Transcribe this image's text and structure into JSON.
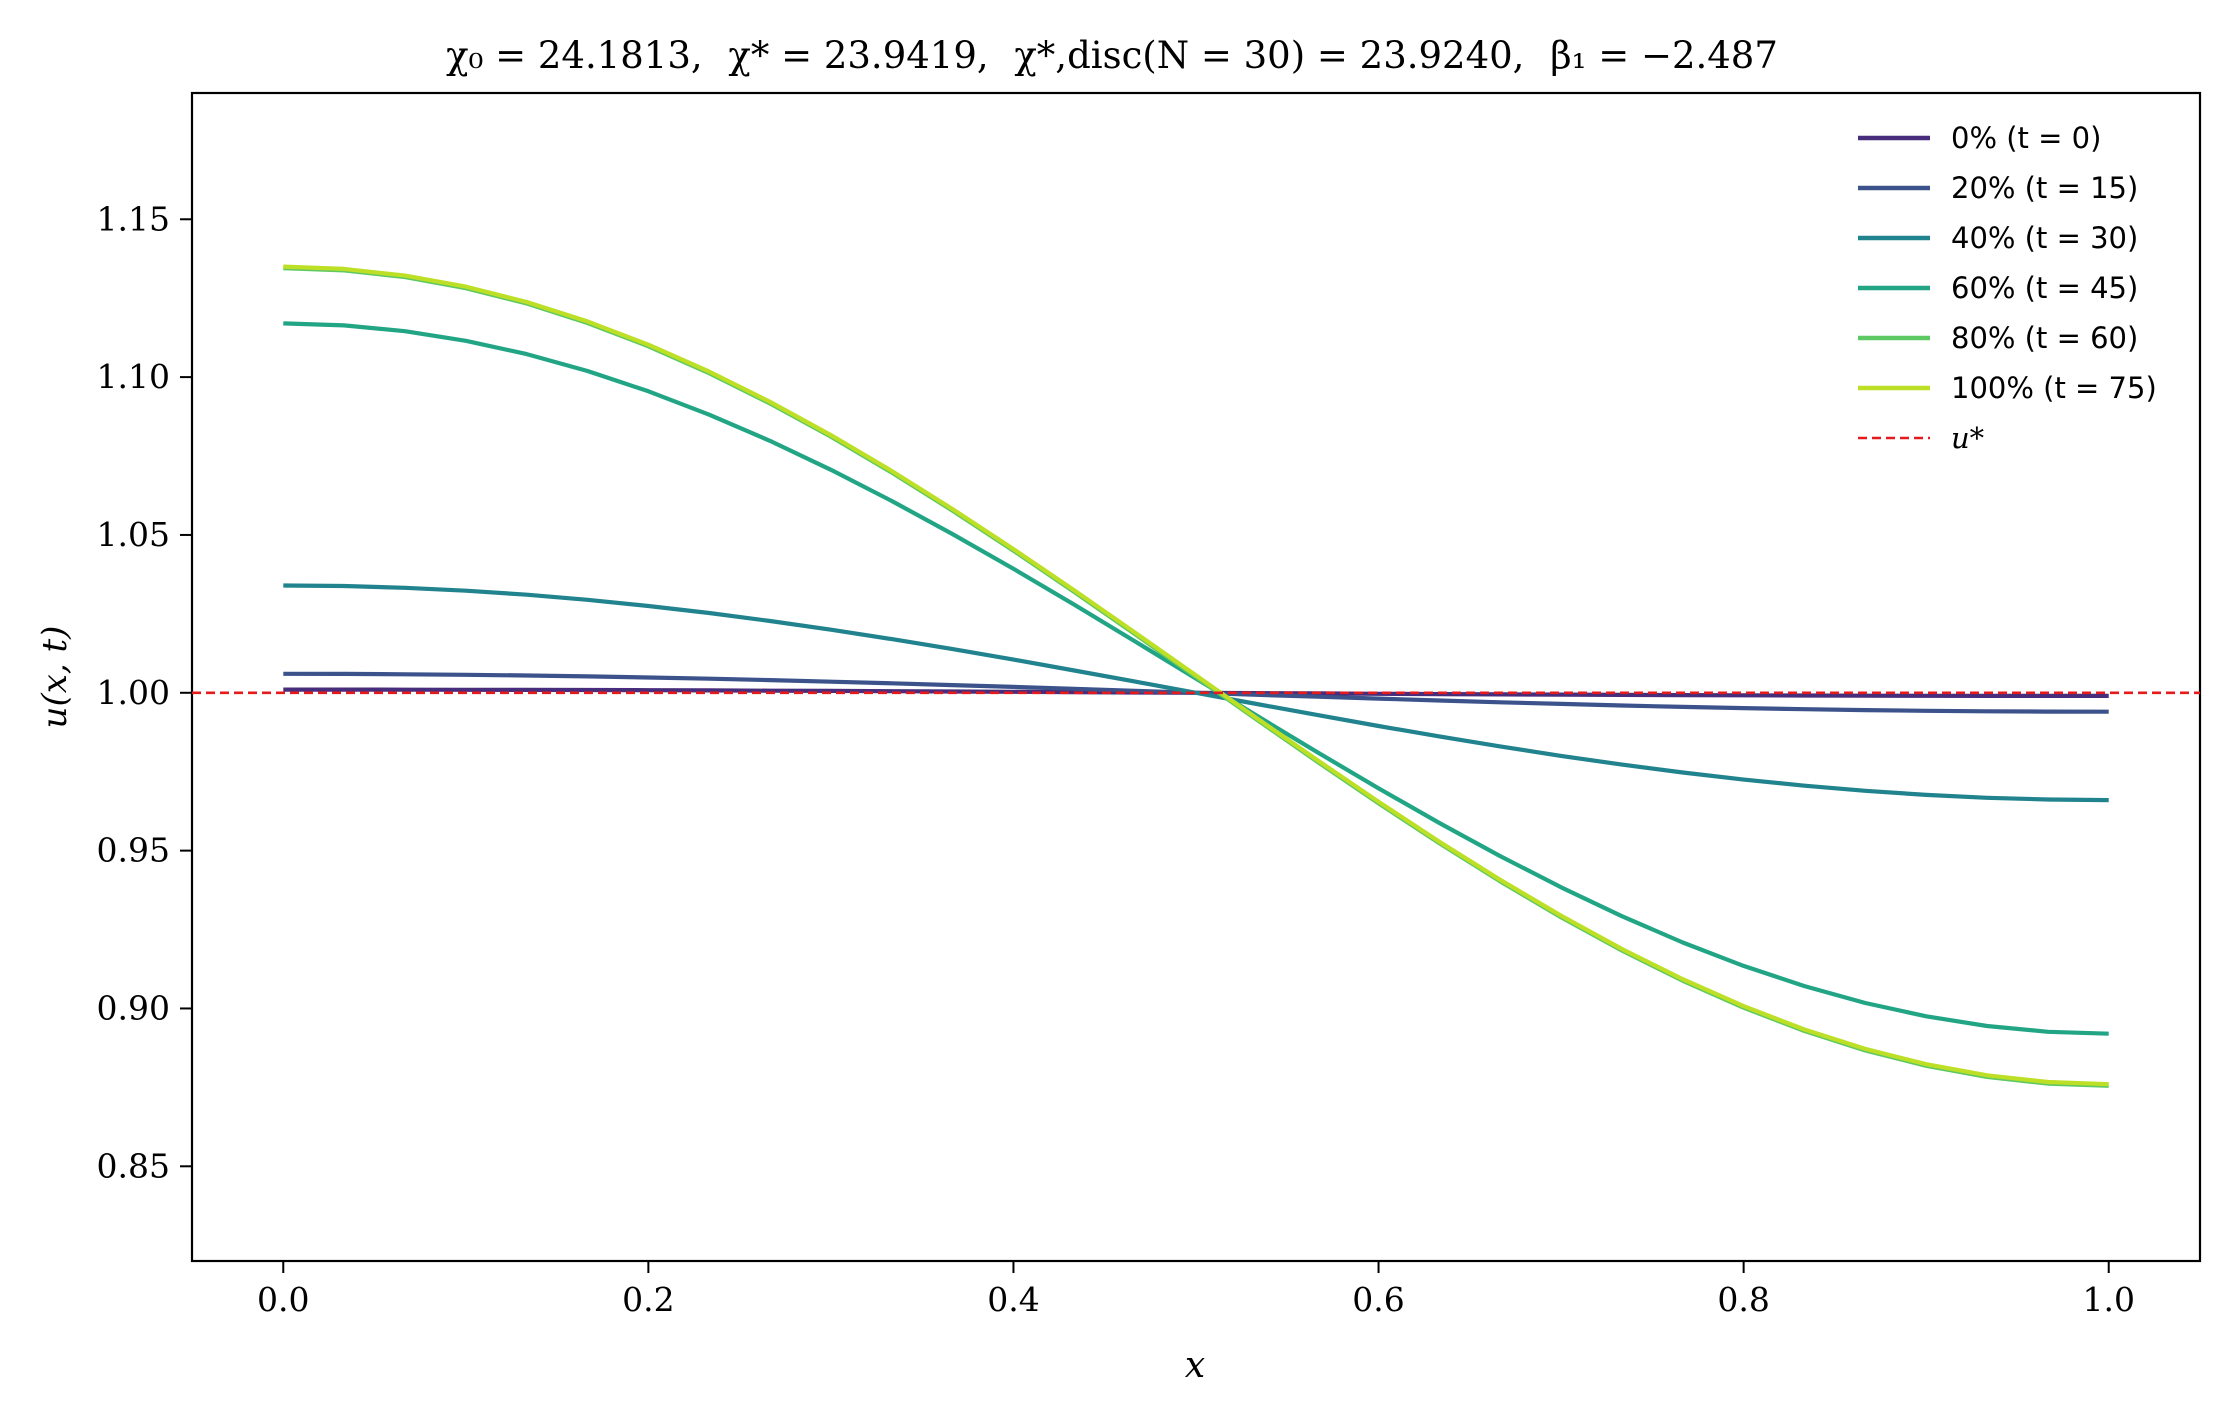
{
  "chart_data": {
    "type": "line",
    "title_parts": [
      "χ₀ = 24.1813,",
      "χ* = 23.9419,",
      "χ*,disc(N = 30) = 23.9240,",
      "β₁ = −2.487"
    ],
    "xlabel": "x",
    "ylabel": "u(x, t)",
    "xlim": [
      -0.05,
      1.05
    ],
    "ylim": [
      0.82,
      1.19
    ],
    "xticks": [
      0.0,
      0.2,
      0.4,
      0.6,
      0.8,
      1.0
    ],
    "xtick_labels": [
      "0.0",
      "0.2",
      "0.4",
      "0.6",
      "0.8",
      "1.0"
    ],
    "yticks": [
      0.85,
      0.9,
      0.95,
      1.0,
      1.05,
      1.1,
      1.15
    ],
    "ytick_labels": [
      "0.85",
      "0.90",
      "0.95",
      "1.00",
      "1.05",
      "1.10",
      "1.15"
    ],
    "grid": false,
    "legend_position": "top-right",
    "reference_line": {
      "name": "u*",
      "y": 1.0,
      "color": "#e41a1c",
      "style": "dashed"
    },
    "series_shape": "cosine",
    "series": [
      {
        "name": "0% (t = 0)",
        "color": "#472d7b",
        "x_range": [
          0,
          1
        ],
        "center": 1.0,
        "amplitude": 0.001
      },
      {
        "name": "20% (t = 15)",
        "color": "#3b528b",
        "x_range": [
          0,
          1
        ],
        "center": 1.0,
        "amplitude": 0.006
      },
      {
        "name": "40% (t = 30)",
        "color": "#21838e",
        "x_range": [
          0,
          1
        ],
        "center": 1.0,
        "amplitude": 0.034
      },
      {
        "name": "60% (t = 45)",
        "color": "#21a585",
        "x_range": [
          0,
          1
        ],
        "center": 1.0045,
        "amplitude": 0.1125
      },
      {
        "name": "80% (t = 60)",
        "color": "#5ec962",
        "x_range": [
          0,
          1
        ],
        "center": 1.005,
        "amplitude": 0.1295
      },
      {
        "name": "100% (t = 75)",
        "color": "#bddf26",
        "x_range": [
          0,
          1
        ],
        "center": 1.0055,
        "amplitude": 0.1295
      }
    ]
  }
}
